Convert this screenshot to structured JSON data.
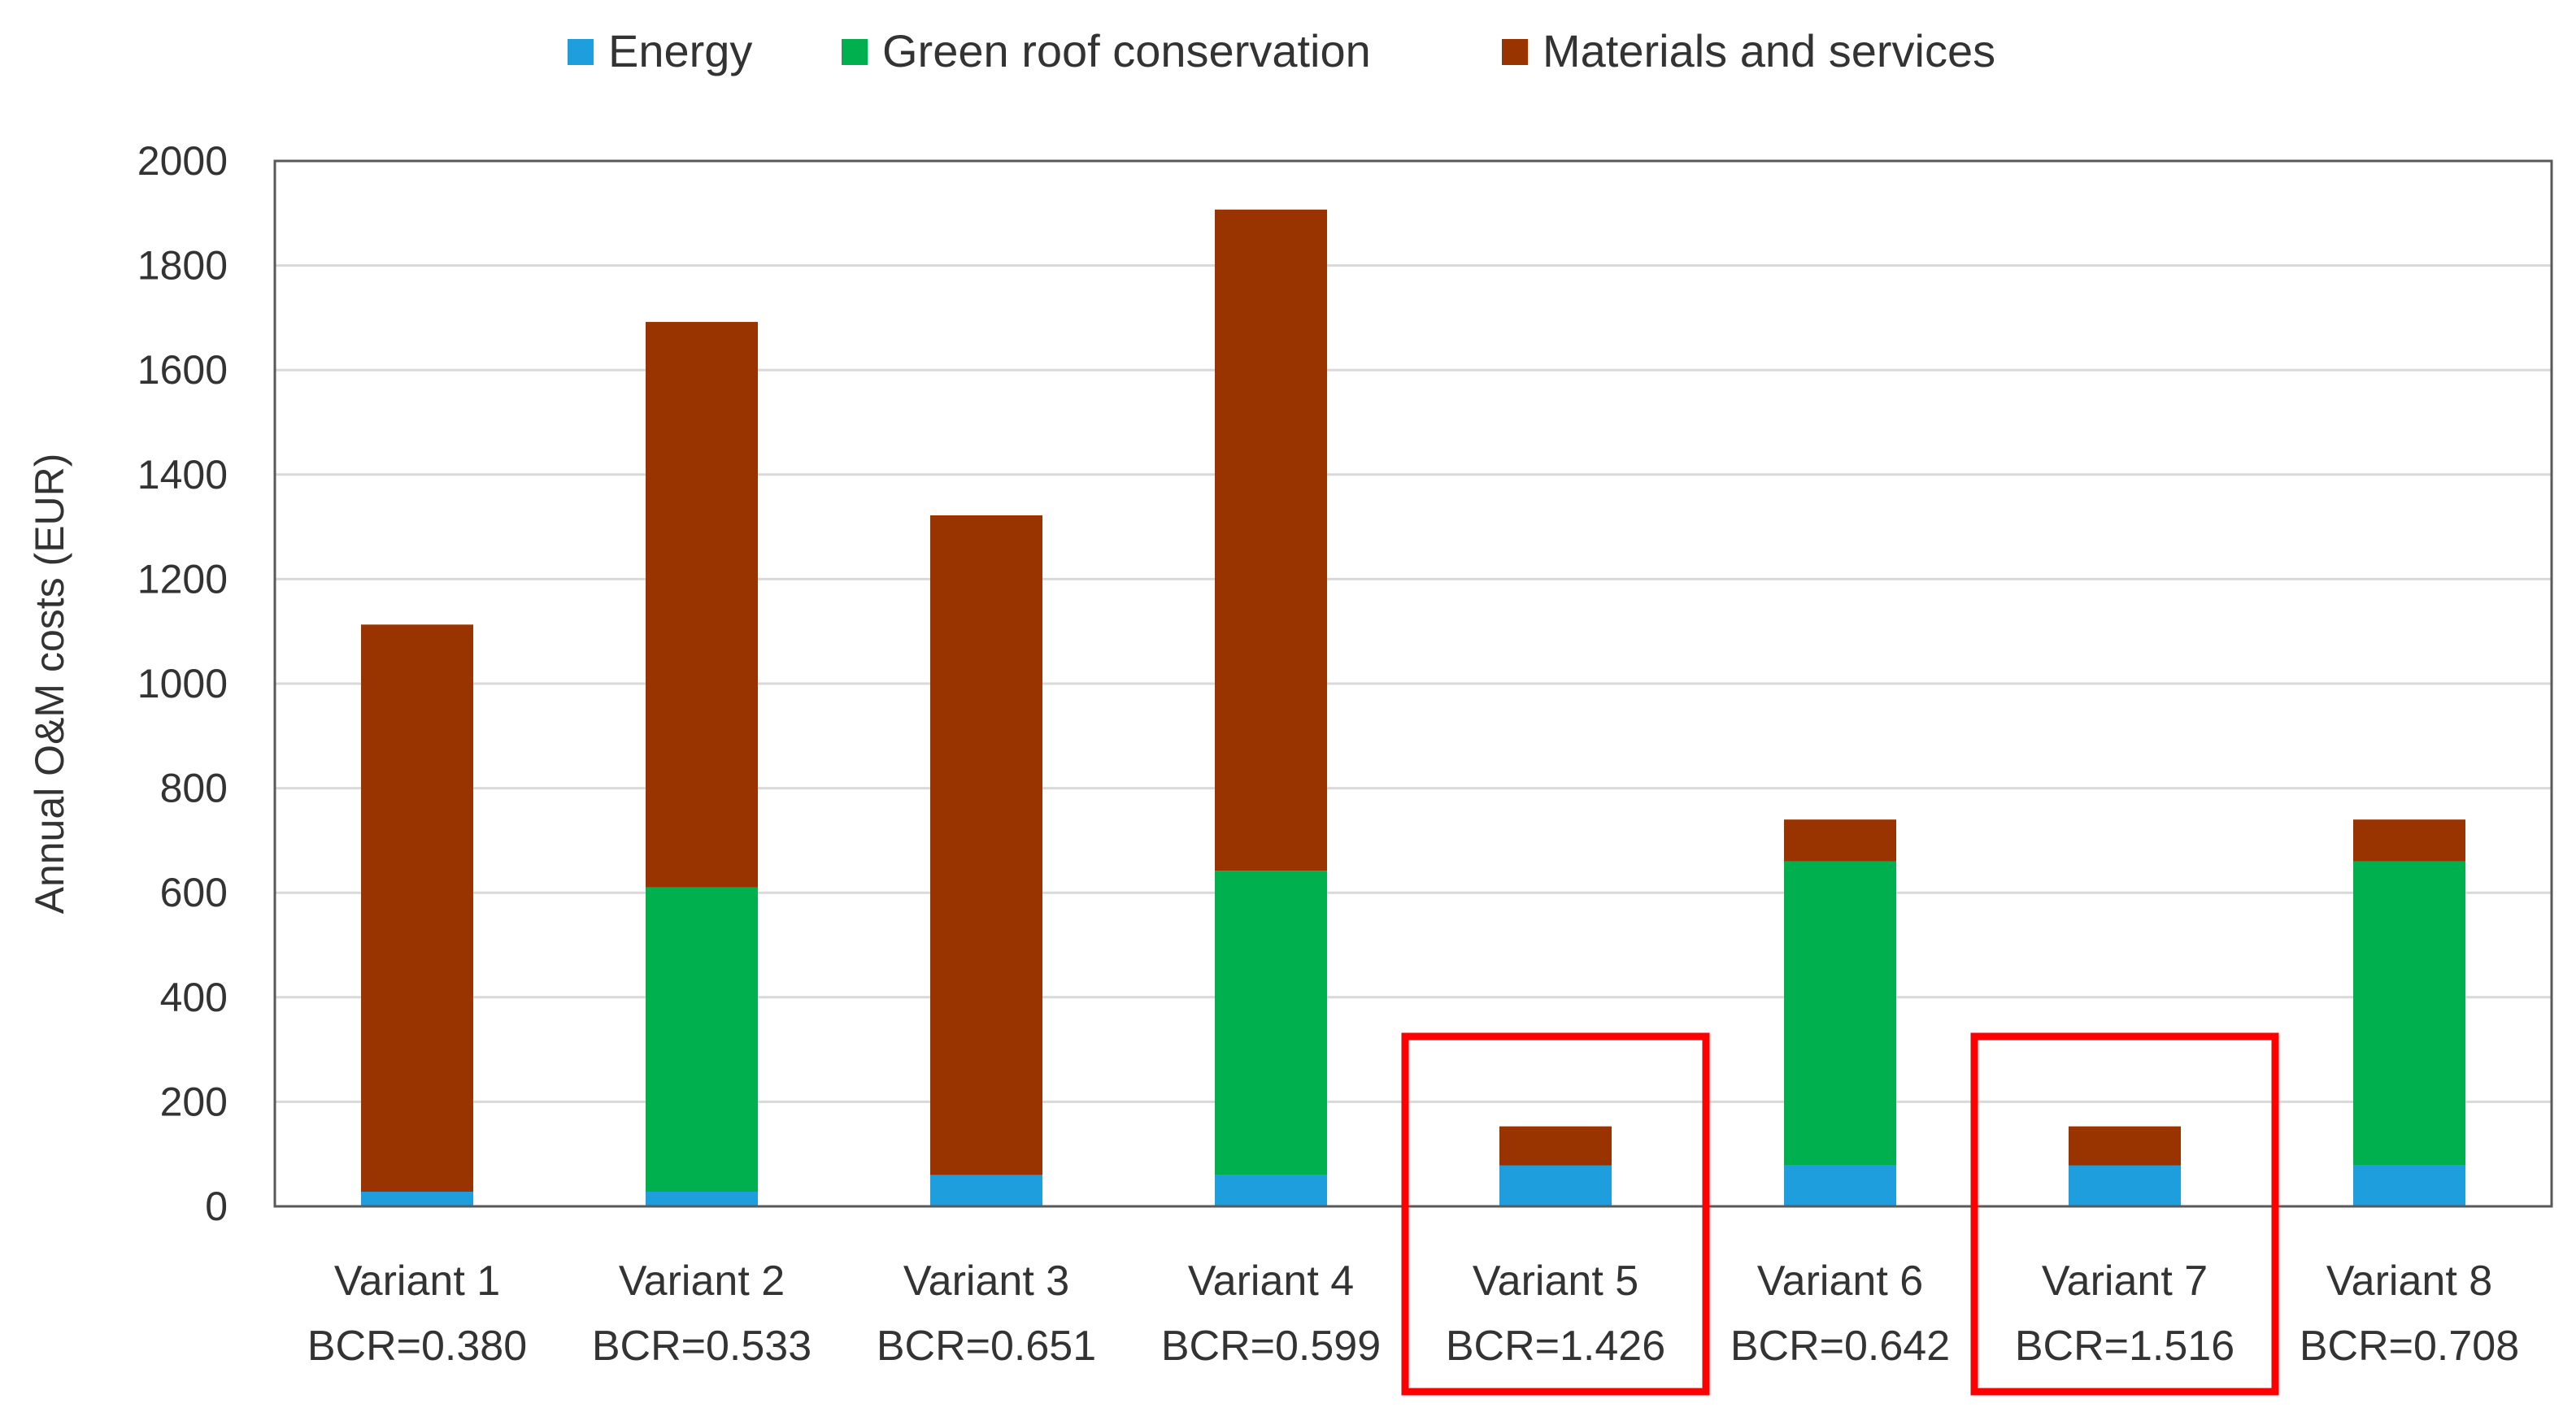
{
  "chart_data": {
    "type": "bar",
    "stacked": true,
    "title": "",
    "xlabel": "",
    "ylabel": "Annual O&M costs (EUR)",
    "ylim": [
      0,
      2000
    ],
    "yticks": [
      0,
      200,
      400,
      600,
      800,
      1000,
      1200,
      1400,
      1600,
      1800,
      2000
    ],
    "grid": true,
    "legend_position": "top-center",
    "categories": [
      "Variant 1",
      "Variant 2",
      "Variant 3",
      "Variant 4",
      "Variant 5",
      "Variant 6",
      "Variant 7",
      "Variant 8"
    ],
    "sublabels": [
      "BCR=0.380",
      "BCR=0.533",
      "BCR=0.651",
      "BCR=0.599",
      "BCR=1.426",
      "BCR=0.642",
      "BCR=1.516",
      "BCR=0.708"
    ],
    "highlighted": [
      "Variant 5",
      "Variant 7"
    ],
    "highlight_color": "#ff0000",
    "series": [
      {
        "name": "Energy",
        "color": "#1f9ede",
        "values": [
          28,
          28,
          60,
          60,
          78,
          78,
          78,
          78
        ]
      },
      {
        "name": "Green roof conservation",
        "color": "#00b04f",
        "values": [
          0,
          582,
          0,
          582,
          0,
          582,
          0,
          582
        ]
      },
      {
        "name": "Materials and services",
        "color": "#993300",
        "values": [
          1085,
          1082,
          1262,
          1265,
          75,
          80,
          75,
          80
        ]
      }
    ]
  }
}
